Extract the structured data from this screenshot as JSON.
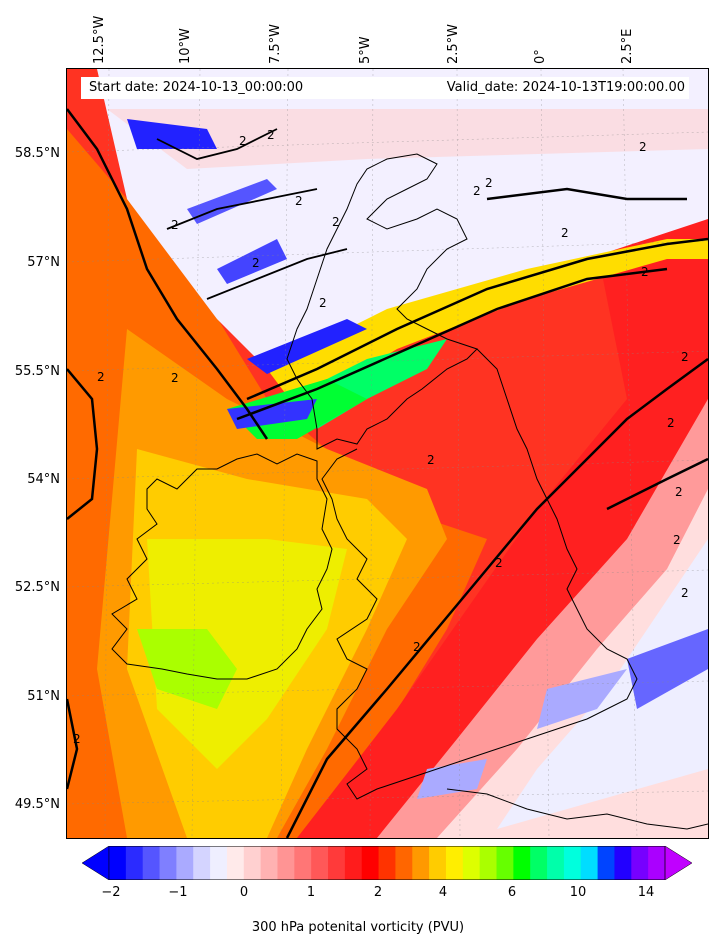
{
  "map": {
    "start_date": "Start date: 2024-10-13_00:00:00",
    "valid_date": "Valid_date: 2024-10-13T19:00:00.00",
    "variable": "300 hPa potenital vorticity (PVU)",
    "contour_level_label": "2",
    "longitude_labels": [
      "12.5°W",
      "10°W",
      "7.5°W",
      "5°W",
      "2.5°W",
      "0°",
      "2.5°E"
    ],
    "latitude_labels": [
      "58.5°N",
      "57°N",
      "55.5°N",
      "54°N",
      "52.5°N",
      "51°N",
      "49.5°N"
    ],
    "region": "Ireland, Great Britain",
    "colorbar": {
      "ticks": [
        "−2",
        "−1",
        "0",
        "1",
        "2",
        "4",
        "6",
        "10",
        "14"
      ],
      "colors": [
        "#0000ff",
        "#2b2bff",
        "#5555ff",
        "#7f7fff",
        "#aaaaff",
        "#d4d4ff",
        "#efefff",
        "#ffeaea",
        "#ffd0d0",
        "#ffb2b2",
        "#ff9494",
        "#ff7676",
        "#ff5858",
        "#ff3a3a",
        "#ff1c1c",
        "#ff0000",
        "#ff3300",
        "#ff6600",
        "#ff9900",
        "#ffcc00",
        "#ffee00",
        "#ddff00",
        "#aaff00",
        "#66ff00",
        "#00ff00",
        "#00ff66",
        "#00ffaa",
        "#00ffdd",
        "#00ddff",
        "#0044ff",
        "#2200ff",
        "#7700ff",
        "#aa00ff"
      ],
      "extend_min_color": "#0000ff",
      "extend_max_color": "#c000ff"
    }
  }
}
